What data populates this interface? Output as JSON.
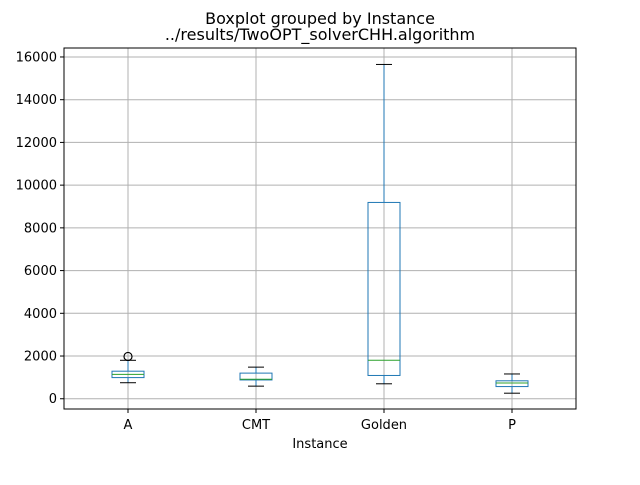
{
  "chart_data": {
    "type": "box",
    "title": "Boxplot grouped by Instance",
    "subtitle": "../results/TwoOPT_solverCHH.algorithm",
    "xlabel": "Instance",
    "ylabel": "",
    "ylim": [
      -480,
      16420
    ],
    "yticks": [
      0,
      2000,
      4000,
      6000,
      8000,
      10000,
      12000,
      14000,
      16000
    ],
    "grid": true,
    "categories": [
      "A",
      "CMT",
      "Golden",
      "P"
    ],
    "boxes": [
      {
        "category": "A",
        "whisker_low": 750,
        "q1": 990,
        "median": 1140,
        "q3": 1290,
        "whisker_high": 1800,
        "outliers": [
          1980
        ]
      },
      {
        "category": "CMT",
        "whisker_low": 590,
        "q1": 880,
        "median": 910,
        "q3": 1200,
        "whisker_high": 1480,
        "outliers": []
      },
      {
        "category": "Golden",
        "whisker_low": 700,
        "q1": 1090,
        "median": 1800,
        "q3": 9190,
        "whisker_high": 15650,
        "outliers": []
      },
      {
        "category": "P",
        "whisker_low": 260,
        "q1": 570,
        "median": 740,
        "q3": 840,
        "whisker_high": 1160,
        "outliers": []
      }
    ],
    "colors": {
      "box": "#1f77b4",
      "median": "#2ca02c",
      "whisker": "#1f77b4",
      "cap": "#000000",
      "grid": "#b0b0b0",
      "axis": "#000000"
    }
  }
}
